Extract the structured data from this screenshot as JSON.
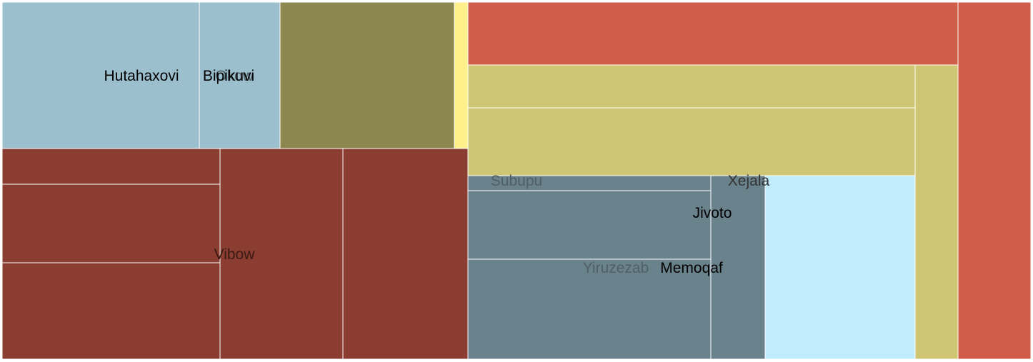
{
  "chart_data": {
    "type": "treemap",
    "title": "",
    "groups": [
      {
        "label": "Hutahaxovi",
        "color": "#9bbfcd",
        "cells": [
          270,
          113
        ]
      },
      {
        "label": "Bipikuvi",
        "color": "#8b874f",
        "cells": [
          250
        ]
      },
      {
        "label": "Okow",
        "color": "#fff08c",
        "cells": [
          20
        ]
      },
      {
        "label": "Vibow",
        "color": "#8a3d30",
        "cells": [
          50,
          111,
          135,
          172,
          174
        ]
      },
      {
        "label": "Xejala",
        "color": "#cfc674",
        "cells": [
          63,
          96,
          60
        ]
      },
      {
        "label": "Subupu",
        "color": "#d05d47",
        "cells": [
          89,
          105
        ]
      },
      {
        "label": "Yiruzezab",
        "color": "#6a828b",
        "cells": [
          21,
          95,
          140
        ]
      },
      {
        "label": "Jivoto",
        "color": "#6a828b",
        "cells": [
          77
        ]
      },
      {
        "label": "Memoqaf",
        "color": "#c1ecfc",
        "cells": [
          210
        ]
      }
    ],
    "label_colors": {
      "Hutahaxovi": "#000000",
      "Bipikuvi": "#000000",
      "Okow": "#4f5f66",
      "Vibow": "#3a1a14",
      "Xejala": "#333333",
      "Subupu": "#4f5f66",
      "Yiruzezab": "#4f5f66",
      "Jivoto": "#000000",
      "Memoqaf": "#000000"
    }
  }
}
